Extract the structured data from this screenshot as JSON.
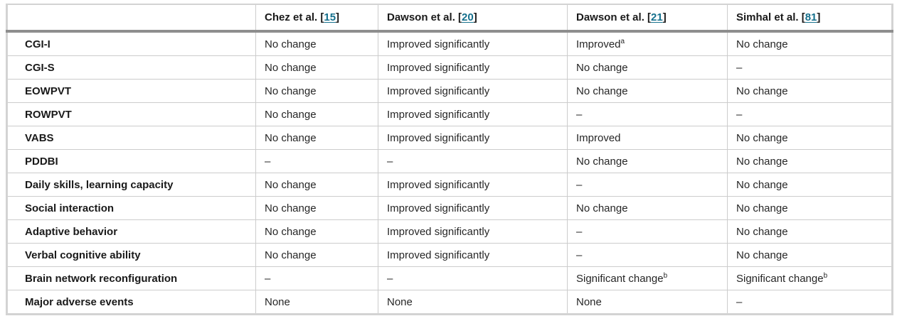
{
  "colors": {
    "link": "#15708d",
    "header_rule": "#8e8e8e",
    "grid_line": "#cccccc",
    "outer_border": "#d3d3d3",
    "label_text": "#1a1a1a",
    "value_text": "#262626",
    "background": "#ffffff"
  },
  "table": {
    "columns": [
      {
        "label": "",
        "ref": null
      },
      {
        "label": "Chez et al.",
        "ref": "15"
      },
      {
        "label": "Dawson et al.",
        "ref": "20"
      },
      {
        "label": "Dawson et al.",
        "ref": "21"
      },
      {
        "label": "Simhal et al.",
        "ref": "81"
      }
    ],
    "rows": [
      {
        "label": "CGI-I",
        "cells": [
          "No change",
          "Improved significantly",
          {
            "text": "Improved",
            "sup": "a"
          },
          "No change"
        ]
      },
      {
        "label": "CGI-S",
        "cells": [
          "No change",
          "Improved significantly",
          "No change",
          "–"
        ]
      },
      {
        "label": "EOWPVT",
        "cells": [
          "No change",
          "Improved significantly",
          "No change",
          "No change"
        ]
      },
      {
        "label": "ROWPVT",
        "cells": [
          "No change",
          "Improved significantly",
          "–",
          "–"
        ]
      },
      {
        "label": "VABS",
        "cells": [
          "No change",
          "Improved significantly",
          "Improved",
          "No change"
        ]
      },
      {
        "label": "PDDBI",
        "cells": [
          "–",
          "–",
          "No change",
          "No change"
        ]
      },
      {
        "label": "Daily skills, learning capacity",
        "cells": [
          "No change",
          "Improved significantly",
          "–",
          "No change"
        ]
      },
      {
        "label": "Social interaction",
        "cells": [
          "No change",
          "Improved significantly",
          "No change",
          "No change"
        ]
      },
      {
        "label": "Adaptive behavior",
        "cells": [
          "No change",
          "Improved significantly",
          "–",
          "No change"
        ]
      },
      {
        "label": "Verbal cognitive ability",
        "cells": [
          "No change",
          "Improved significantly",
          "–",
          "No change"
        ]
      },
      {
        "label": "Brain network reconfiguration",
        "cells": [
          "–",
          "–",
          {
            "text": "Significant change",
            "sup": "b"
          },
          {
            "text": "Significant change",
            "sup": "b"
          }
        ]
      },
      {
        "label": "Major adverse events",
        "cells": [
          "None",
          "None",
          "None",
          "–"
        ]
      }
    ]
  }
}
